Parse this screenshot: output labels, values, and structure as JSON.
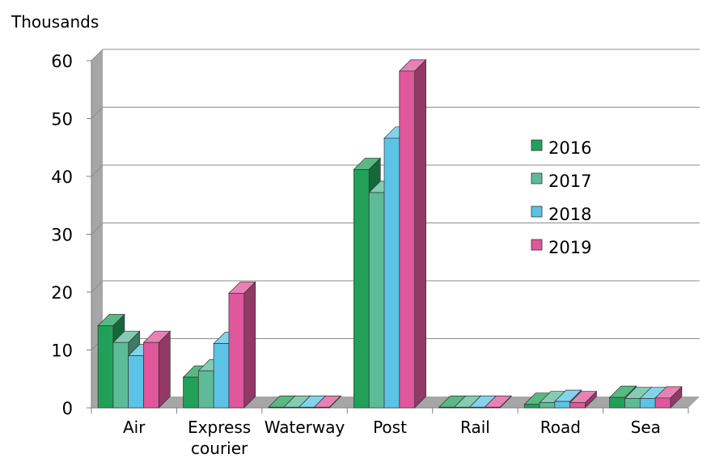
{
  "chart_data": {
    "type": "bar",
    "unit_label": "Thousands",
    "categories": [
      "Air",
      "Express courier",
      "Waterway",
      "Post",
      "Rail",
      "Road",
      "Sea"
    ],
    "series": [
      {
        "name": "2016",
        "color": "#21a05a",
        "values": [
          14.2,
          5.3,
          0.1,
          41.2,
          0.1,
          0.6,
          1.8
        ]
      },
      {
        "name": "2017",
        "color": "#5dbb98",
        "values": [
          11.3,
          6.4,
          0.1,
          37.2,
          0.1,
          0.9,
          1.6
        ]
      },
      {
        "name": "2018",
        "color": "#5bc4e6",
        "values": [
          9.0,
          11.1,
          0.1,
          46.6,
          0.1,
          1.1,
          1.6
        ]
      },
      {
        "name": "2019",
        "color": "#e0579b",
        "values": [
          11.3,
          19.8,
          0.1,
          58.2,
          0.1,
          0.9,
          1.7
        ]
      }
    ],
    "ylim": [
      0,
      60
    ],
    "yticks": [
      "0",
      "10",
      "20",
      "30",
      "40",
      "50",
      "60"
    ],
    "grid": true,
    "legend": "right-center",
    "style": "3d-clustered-column"
  }
}
